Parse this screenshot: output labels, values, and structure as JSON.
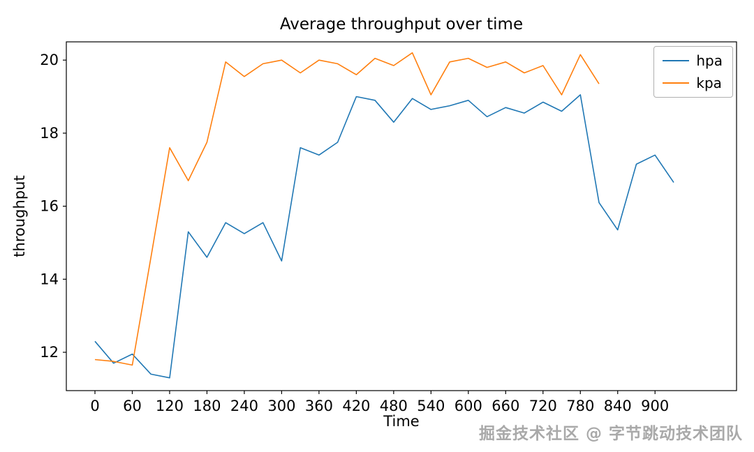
{
  "watermark": "掘金技术社区 @ 字节跳动技术团队",
  "chart_data": {
    "type": "line",
    "title": "Average throughput over time",
    "xlabel": "Time",
    "ylabel": "throughput",
    "xlim": [
      -46,
      1031
    ],
    "ylim": [
      10.95,
      20.5
    ],
    "xticks": [
      0,
      60,
      120,
      180,
      240,
      300,
      360,
      420,
      480,
      540,
      600,
      660,
      720,
      780,
      840,
      900
    ],
    "yticks": [
      12,
      14,
      16,
      18,
      20
    ],
    "grid": false,
    "legend_position": "upper right",
    "series": [
      {
        "name": "hpa",
        "color": "#1f77b4",
        "x": [
          0,
          30,
          60,
          90,
          120,
          150,
          180,
          210,
          240,
          270,
          300,
          330,
          360,
          390,
          420,
          450,
          480,
          510,
          540,
          570,
          600,
          630,
          660,
          690,
          720,
          750,
          780,
          810,
          840,
          870,
          900,
          930
        ],
        "values": [
          12.3,
          11.7,
          11.95,
          11.4,
          11.3,
          15.3,
          14.6,
          15.55,
          15.25,
          15.55,
          14.5,
          17.6,
          17.4,
          17.75,
          19.0,
          18.9,
          18.3,
          18.95,
          18.65,
          18.75,
          18.9,
          18.45,
          18.7,
          18.55,
          18.85,
          18.6,
          19.05,
          16.1,
          15.35,
          17.15,
          17.4,
          16.65
        ]
      },
      {
        "name": "kpa",
        "color": "#ff7f0e",
        "x": [
          0,
          30,
          60,
          90,
          120,
          150,
          180,
          210,
          240,
          270,
          300,
          330,
          360,
          390,
          420,
          450,
          480,
          510,
          540,
          570,
          600,
          630,
          660,
          690,
          720,
          750,
          780,
          810
        ],
        "values": [
          11.8,
          11.75,
          11.65,
          14.6,
          17.6,
          16.7,
          17.75,
          19.95,
          19.55,
          19.9,
          20.0,
          19.65,
          20.0,
          19.9,
          19.6,
          20.05,
          19.85,
          20.2,
          19.05,
          19.95,
          20.05,
          19.8,
          19.95,
          19.65,
          19.85,
          19.05,
          20.15,
          19.35
        ]
      }
    ]
  }
}
